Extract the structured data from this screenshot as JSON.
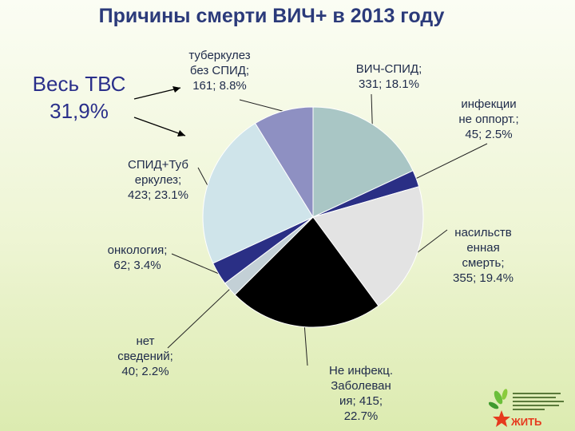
{
  "title": "Причины смерти ВИЧ+ в 2013 году",
  "annotation": {
    "line1": "Весь ТВС",
    "line2": "31,9%"
  },
  "chart_data": {
    "type": "pie",
    "title": "Причины смерти ВИЧ+ в 2013 году",
    "slices": [
      {
        "label": "ВИЧ-СПИД",
        "value": 331,
        "percent": 18.1,
        "color": "#a9c6c5",
        "lines": [
          "ВИЧ-СПИД;",
          "331; 18.1%"
        ]
      },
      {
        "label": "инфекции не оппорт.",
        "value": 45,
        "percent": 2.5,
        "color": "#2a2f85",
        "lines": [
          "инфекции",
          "не оппорт.;",
          "45; 2.5%"
        ]
      },
      {
        "label": "насильственная смерть",
        "value": 355,
        "percent": 19.4,
        "color": "#e3e3e3",
        "lines": [
          "насильств",
          "енная",
          "смерть;",
          "355; 19.4%"
        ]
      },
      {
        "label": "Не инфекц. Заболевания",
        "value": 415,
        "percent": 22.7,
        "color": "#000000",
        "lines": [
          "Не инфекц.",
          "Заболеван",
          "ия; 415;",
          "22.7%"
        ]
      },
      {
        "label": "нет сведений",
        "value": 40,
        "percent": 2.2,
        "color": "#c3d0d6",
        "lines": [
          "нет",
          "сведений;",
          "40; 2.2%"
        ]
      },
      {
        "label": "онкология",
        "value": 62,
        "percent": 3.4,
        "color": "#2a2f85",
        "lines": [
          "онкология;",
          "62; 3.4%"
        ]
      },
      {
        "label": "СПИД+Туберкулез",
        "value": 423,
        "percent": 23.1,
        "color": "#cfe4ea",
        "lines": [
          "СПИД+Туб",
          "еркулез;",
          "423; 23.1%"
        ]
      },
      {
        "label": "туберкулез без СПИД",
        "value": 161,
        "percent": 8.8,
        "color": "#8e90c2",
        "lines": [
          "туберкулез",
          "без СПИД;",
          "161; 8.8%"
        ]
      }
    ]
  },
  "logo": {
    "text": "ЖИТЬ"
  }
}
